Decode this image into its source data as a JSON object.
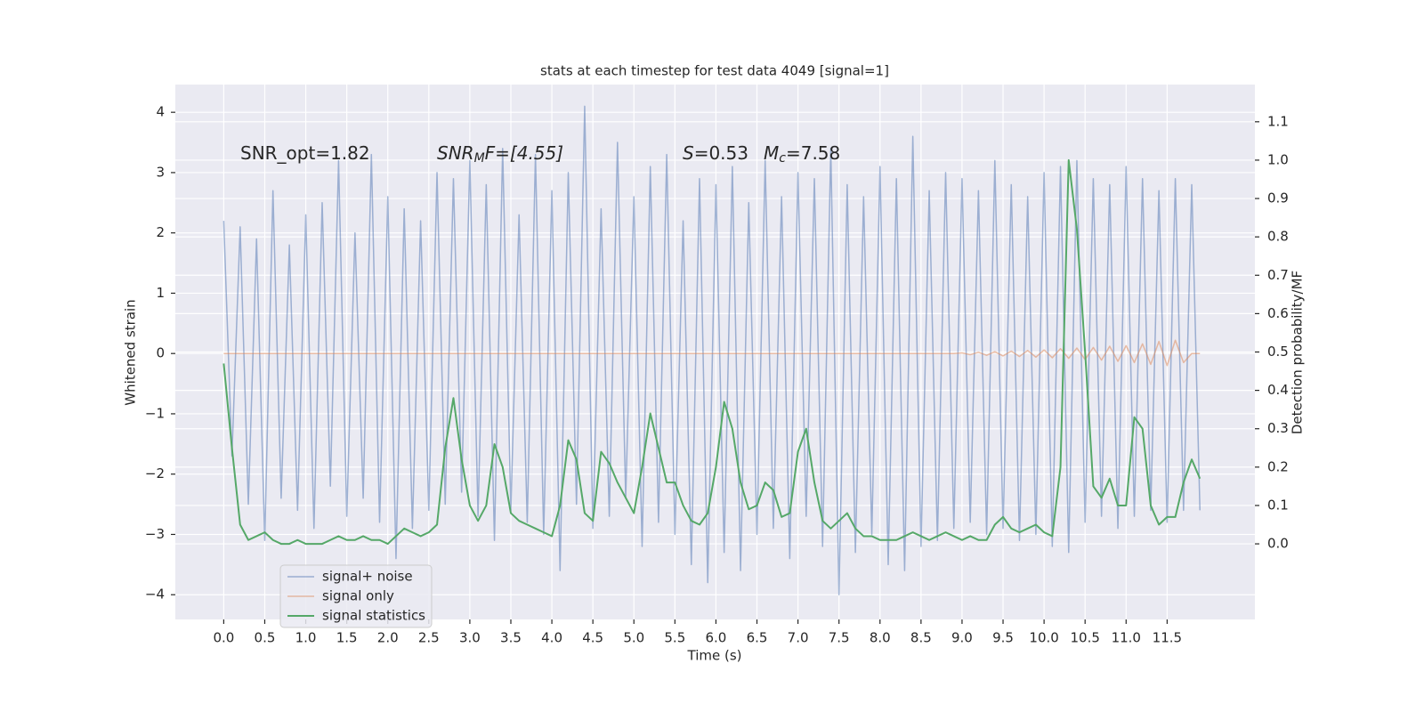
{
  "chart_data": {
    "type": "line",
    "title": "stats at each timestep for test data 4049 [signal=1]",
    "xlabel": "Time (s)",
    "ylabel": "Whitened strain",
    "y2label": "Detection probability/MF",
    "annotations": [
      [
        "SNR_opt=1.82"
      ],
      [
        "SNR",
        "M",
        "F=[4.55]"
      ],
      [
        "S",
        "=0.53"
      ],
      [
        "M",
        "c",
        "=7.58"
      ]
    ],
    "legend": "lower left",
    "grid": true,
    "xlim": [
      -0.59,
      12.57
    ],
    "ylim": [
      -4.41,
      4.46
    ],
    "y2lim": [
      -0.197,
      1.197
    ],
    "xticks": [
      {
        "value": 0,
        "label": "0.0"
      },
      {
        "value": 0.5,
        "label": "0.5"
      },
      {
        "value": 1,
        "label": "1.0"
      },
      {
        "value": 1.5,
        "label": "1.5"
      },
      {
        "value": 2,
        "label": "2.0"
      },
      {
        "value": 2.5,
        "label": "2.5"
      },
      {
        "value": 3,
        "label": "3.0"
      },
      {
        "value": 3.5,
        "label": "3.5"
      },
      {
        "value": 4,
        "label": "4.0"
      },
      {
        "value": 4.5,
        "label": "4.5"
      },
      {
        "value": 5,
        "label": "5.0"
      },
      {
        "value": 5.5,
        "label": "5.5"
      },
      {
        "value": 6,
        "label": "6.0"
      },
      {
        "value": 6.5,
        "label": "6.5"
      },
      {
        "value": 7,
        "label": "7.0"
      },
      {
        "value": 7.5,
        "label": "7.5"
      },
      {
        "value": 8,
        "label": "8.0"
      },
      {
        "value": 8.5,
        "label": "8.5"
      },
      {
        "value": 9,
        "label": "9.0"
      },
      {
        "value": 9.5,
        "label": "9.5"
      },
      {
        "value": 10,
        "label": "10.0"
      },
      {
        "value": 10.5,
        "label": "10.5"
      },
      {
        "value": 11,
        "label": "11.0"
      },
      {
        "value": 11.5,
        "label": "11.5"
      }
    ],
    "yticks": [
      {
        "value": -4,
        "label": "−4"
      },
      {
        "value": -3,
        "label": "−3"
      },
      {
        "value": -2,
        "label": "−2"
      },
      {
        "value": -1,
        "label": "−1"
      },
      0,
      1,
      2,
      3,
      4
    ],
    "y2ticks": [
      {
        "value": 0,
        "label": "0.0"
      },
      {
        "value": 0.1,
        "label": "0.1"
      },
      {
        "value": 0.2,
        "label": "0.2"
      },
      {
        "value": 0.3,
        "label": "0.3"
      },
      {
        "value": 0.4,
        "label": "0.4"
      },
      {
        "value": 0.5,
        "label": "0.5"
      },
      {
        "value": 0.6,
        "label": "0.6"
      },
      {
        "value": 0.7,
        "label": "0.7"
      },
      {
        "value": 0.8,
        "label": "0.8"
      },
      {
        "value": 0.9,
        "label": "0.9"
      },
      {
        "value": 1,
        "label": "1.0"
      },
      {
        "value": 1.1,
        "label": "1.1"
      }
    ],
    "x": [
      0.0,
      0.1,
      0.2,
      0.3,
      0.4,
      0.5,
      0.6,
      0.7,
      0.8,
      0.9,
      1.0,
      1.1,
      1.2,
      1.3,
      1.4,
      1.5,
      1.6,
      1.7,
      1.8,
      1.9,
      2.0,
      2.1,
      2.2,
      2.3,
      2.4,
      2.5,
      2.6,
      2.7,
      2.8,
      2.9,
      3.0,
      3.1,
      3.2,
      3.3,
      3.4,
      3.5,
      3.6,
      3.7,
      3.8,
      3.9,
      4.0,
      4.1,
      4.2,
      4.3,
      4.4,
      4.5,
      4.6,
      4.7,
      4.8,
      4.9,
      5.0,
      5.1,
      5.2,
      5.3,
      5.4,
      5.5,
      5.6,
      5.7,
      5.8,
      5.9,
      6.0,
      6.1,
      6.2,
      6.3,
      6.4,
      6.5,
      6.6,
      6.7,
      6.8,
      6.9,
      7.0,
      7.1,
      7.2,
      7.3,
      7.4,
      7.5,
      7.6,
      7.7,
      7.8,
      7.9,
      8.0,
      8.1,
      8.2,
      8.3,
      8.4,
      8.5,
      8.6,
      8.7,
      8.8,
      8.9,
      9.0,
      9.1,
      9.2,
      9.3,
      9.4,
      9.5,
      9.6,
      9.7,
      9.8,
      9.9,
      10.0,
      10.1,
      10.2,
      10.3,
      10.4,
      10.5,
      10.6,
      10.7,
      10.8,
      10.9,
      11.0,
      11.1,
      11.2,
      11.3,
      11.4,
      11.5,
      11.6,
      11.7,
      11.8,
      11.9
    ],
    "series": [
      {
        "name": "signal+ noise",
        "color": "#4c72b0",
        "values": [
          2.2,
          -1.7,
          2.1,
          -2.5,
          1.9,
          -3.1,
          2.7,
          -2.4,
          1.8,
          -2.6,
          2.3,
          -2.9,
          2.5,
          -2.2,
          3.2,
          -2.7,
          2.0,
          -2.4,
          3.3,
          -2.8,
          2.6,
          -3.4,
          2.4,
          -2.9,
          2.2,
          -2.6,
          3.0,
          -2.5,
          2.9,
          -2.3,
          3.2,
          -2.7,
          2.8,
          -3.1,
          3.4,
          -2.6,
          2.3,
          -2.8,
          3.3,
          -3.0,
          2.7,
          -3.6,
          3.0,
          -2.5,
          4.1,
          -2.9,
          2.4,
          -2.7,
          3.5,
          -2.4,
          2.6,
          -3.2,
          3.1,
          -2.8,
          3.3,
          -3.0,
          2.2,
          -3.5,
          2.9,
          -3.8,
          2.8,
          -3.3,
          3.1,
          -3.6,
          2.5,
          -3.0,
          3.2,
          -2.9,
          2.6,
          -3.4,
          3.0,
          -2.7,
          2.9,
          -3.2,
          3.4,
          -4.0,
          2.8,
          -3.3,
          2.6,
          -3.0,
          3.1,
          -3.5,
          2.9,
          -3.6,
          3.6,
          -3.2,
          2.7,
          -3.1,
          3.0,
          -2.9,
          2.9,
          -2.8,
          2.7,
          -3.0,
          3.2,
          -2.9,
          2.8,
          -3.1,
          2.6,
          -3.0,
          3.0,
          -3.2,
          3.1,
          -3.3,
          3.2,
          -2.8,
          2.9,
          -2.7,
          2.8,
          -2.9,
          3.1,
          -2.7,
          2.9,
          -2.6,
          2.7,
          -2.8,
          2.9,
          -2.6,
          2.8,
          -2.6
        ]
      },
      {
        "name": "signal only",
        "color": "#dd8452",
        "values": [
          0,
          0,
          0,
          0,
          0,
          0,
          0,
          0,
          0,
          0,
          0,
          0,
          0,
          0,
          0,
          0,
          0,
          0,
          0,
          0,
          0,
          0,
          0,
          0,
          0,
          0,
          0,
          0,
          0,
          0,
          0,
          0,
          0,
          0,
          0,
          0,
          0,
          0,
          0,
          0,
          0,
          0,
          0,
          0,
          0,
          0,
          0,
          0,
          0,
          0,
          0,
          0,
          0,
          0,
          0,
          0,
          0,
          0,
          0,
          0,
          0,
          0,
          0,
          0,
          0,
          0,
          0,
          0,
          0,
          0,
          0,
          0,
          0,
          0,
          0,
          0,
          0,
          0,
          0,
          0,
          0,
          0,
          0,
          0,
          0,
          0,
          0,
          0,
          0,
          0,
          0.01,
          -0.02,
          0.02,
          -0.03,
          0.03,
          -0.04,
          0.04,
          -0.05,
          0.05,
          -0.06,
          0.06,
          -0.07,
          0.08,
          -0.08,
          0.09,
          -0.1,
          0.1,
          -0.11,
          0.12,
          -0.13,
          0.13,
          -0.15,
          0.16,
          -0.18,
          0.2,
          -0.2,
          0.22,
          -0.15,
          0,
          0
        ]
      },
      {
        "name": "signal statistics",
        "color": "#55a868",
        "axis": "y2",
        "values": [
          0.47,
          0.25,
          0.05,
          0.01,
          0.02,
          0.03,
          0.01,
          0.0,
          0.0,
          0.01,
          0.0,
          0.0,
          0.0,
          0.01,
          0.02,
          0.01,
          0.01,
          0.02,
          0.01,
          0.01,
          0.0,
          0.02,
          0.04,
          0.03,
          0.02,
          0.03,
          0.05,
          0.25,
          0.38,
          0.22,
          0.1,
          0.06,
          0.1,
          0.26,
          0.2,
          0.08,
          0.06,
          0.05,
          0.04,
          0.03,
          0.02,
          0.1,
          0.27,
          0.22,
          0.08,
          0.06,
          0.24,
          0.21,
          0.16,
          0.12,
          0.08,
          0.2,
          0.34,
          0.25,
          0.16,
          0.16,
          0.1,
          0.06,
          0.05,
          0.08,
          0.2,
          0.37,
          0.3,
          0.16,
          0.09,
          0.1,
          0.16,
          0.14,
          0.07,
          0.08,
          0.24,
          0.3,
          0.16,
          0.06,
          0.04,
          0.06,
          0.08,
          0.04,
          0.02,
          0.02,
          0.01,
          0.01,
          0.01,
          0.02,
          0.03,
          0.02,
          0.01,
          0.02,
          0.03,
          0.02,
          0.01,
          0.02,
          0.01,
          0.01,
          0.05,
          0.07,
          0.04,
          0.03,
          0.04,
          0.05,
          0.03,
          0.02,
          0.2,
          1.0,
          0.82,
          0.5,
          0.15,
          0.12,
          0.17,
          0.1,
          0.1,
          0.33,
          0.3,
          0.1,
          0.05,
          0.07,
          0.07,
          0.16,
          0.22,
          0.17
        ]
      }
    ]
  }
}
